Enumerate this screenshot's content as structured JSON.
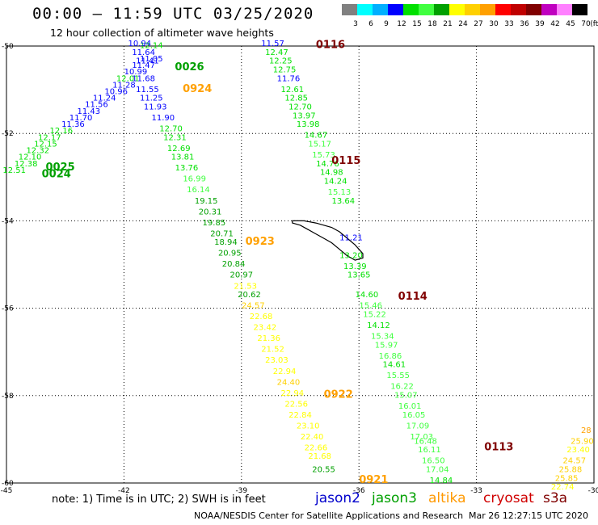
{
  "header": {
    "title": "00:00 – 11:59 UTC 03/25/2020",
    "subtitle": "12 hour collection of altimeter wave heights"
  },
  "colorbar": {
    "colors": [
      "#808080",
      "#00ffff",
      "#00b0ff",
      "#0000ff",
      "#00e000",
      "#40ff40",
      "#00a000",
      "#ffff00",
      "#ffd000",
      "#ffa000",
      "#ff0000",
      "#c00000",
      "#800000",
      "#c000c0",
      "#ff80ff",
      "#000000"
    ],
    "labels": [
      "3",
      "6",
      "9",
      "12",
      "15",
      "18",
      "21",
      "24",
      "27",
      "30",
      "33",
      "36",
      "39",
      "42",
      "45",
      "70",
      "(ft)"
    ]
  },
  "axes": {
    "lat_labels": [
      "-50",
      "-52",
      "-54",
      "-56",
      "-58",
      "-60"
    ],
    "lon_labels": [
      "-45",
      "-42",
      "-39",
      "-36",
      "-33",
      "-30"
    ]
  },
  "chart_data": {
    "type": "scatter",
    "description_units": "lon/lat degrees, SWH in feet",
    "lon_range": [
      -45,
      -30
    ],
    "lat_range": [
      -60,
      -50
    ],
    "passes": [
      {
        "label": "0026",
        "color": "#00a000",
        "lon": -40.7,
        "lat": -50.55
      },
      {
        "label": "0924",
        "color": "#ffa000",
        "lon": -40.5,
        "lat": -51.05
      },
      {
        "label": "0025",
        "color": "#00a000",
        "lon": -44.0,
        "lat": -52.85
      },
      {
        "label": "0024",
        "color": "#00a000",
        "lon": -44.1,
        "lat": -53.0
      },
      {
        "label": "0116",
        "color": "#800000",
        "lon": -37.1,
        "lat": -50.05
      },
      {
        "label": "0115",
        "color": "#800000",
        "lon": -36.7,
        "lat": -52.7
      },
      {
        "label": "0923",
        "color": "#ffa000",
        "lon": -38.9,
        "lat": -54.55
      },
      {
        "label": "0114",
        "color": "#800000",
        "lon": -35.0,
        "lat": -55.8
      },
      {
        "label": "0922",
        "color": "#ffa000",
        "lon": -36.9,
        "lat": -58.05
      },
      {
        "label": "0113",
        "color": "#800000",
        "lon": -32.8,
        "lat": -59.25
      },
      {
        "label": "0921",
        "color": "#ffa000",
        "lon": -36.0,
        "lat": -60.0
      }
    ],
    "tracks": [
      {
        "name": "pass-0024-0026",
        "points": [
          {
            "lon": -44.8,
            "lat": -52.9,
            "v": 12.51
          },
          {
            "lon": -44.5,
            "lat": -52.75,
            "v": 12.38
          },
          {
            "lon": -44.4,
            "lat": -52.6,
            "v": 12.1
          },
          {
            "lon": -44.2,
            "lat": -52.45,
            "v": 12.32
          },
          {
            "lon": -44.0,
            "lat": -52.3,
            "v": 12.15
          },
          {
            "lon": -43.9,
            "lat": -52.15,
            "v": 12.17
          },
          {
            "lon": -43.6,
            "lat": -52.0,
            "v": 12.16
          },
          {
            "lon": -43.3,
            "lat": -51.85,
            "v": 11.36
          },
          {
            "lon": -43.1,
            "lat": -51.7,
            "v": 11.7
          },
          {
            "lon": -42.9,
            "lat": -51.55,
            "v": 11.43
          },
          {
            "lon": -42.7,
            "lat": -51.4,
            "v": 11.56
          },
          {
            "lon": -42.5,
            "lat": -51.25,
            "v": 11.24
          },
          {
            "lon": -42.2,
            "lat": -51.1,
            "v": 10.96
          },
          {
            "lon": -42.0,
            "lat": -50.95,
            "v": 11.28
          },
          {
            "lon": -41.9,
            "lat": -50.8,
            "v": 12.01
          },
          {
            "lon": -41.7,
            "lat": -50.65,
            "v": 10.99
          },
          {
            "lon": -41.5,
            "lat": -50.5,
            "v": 11.47
          },
          {
            "lon": -41.4,
            "lat": -50.4,
            "v": 11.41
          },
          {
            "lon": -41.3,
            "lat": -50.35,
            "v": 11.05
          },
          {
            "lon": -41.5,
            "lat": -50.2,
            "v": 11.64
          },
          {
            "lon": -41.3,
            "lat": -50.05,
            "v": 12.14
          },
          {
            "lon": -41.6,
            "lat": -50.0,
            "v": 10.94
          }
        ]
      },
      {
        "name": "pass-0921-0924",
        "points": [
          {
            "lon": -41.5,
            "lat": -50.8,
            "v": 11.68
          },
          {
            "lon": -41.4,
            "lat": -51.05,
            "v": 11.55
          },
          {
            "lon": -41.3,
            "lat": -51.25,
            "v": 11.25
          },
          {
            "lon": -41.2,
            "lat": -51.45,
            "v": 11.93
          },
          {
            "lon": -41.0,
            "lat": -51.7,
            "v": 11.9
          },
          {
            "lon": -40.8,
            "lat": -51.95,
            "v": 12.7
          },
          {
            "lon": -40.7,
            "lat": -52.15,
            "v": 12.31
          },
          {
            "lon": -40.6,
            "lat": -52.4,
            "v": 12.69
          },
          {
            "lon": -40.5,
            "lat": -52.6,
            "v": 13.81
          },
          {
            "lon": -40.4,
            "lat": -52.85,
            "v": 13.76
          },
          {
            "lon": -40.2,
            "lat": -53.1,
            "v": 16.99
          },
          {
            "lon": -40.1,
            "lat": -53.35,
            "v": 16.14
          },
          {
            "lon": -39.9,
            "lat": -53.6,
            "v": 19.15
          },
          {
            "lon": -39.8,
            "lat": -53.85,
            "v": 20.31
          },
          {
            "lon": -39.7,
            "lat": -54.1,
            "v": 19.85
          },
          {
            "lon": -39.5,
            "lat": -54.35,
            "v": 20.71
          },
          {
            "lon": -39.4,
            "lat": -54.55,
            "v": 18.94
          },
          {
            "lon": -39.3,
            "lat": -54.8,
            "v": 20.95
          },
          {
            "lon": -39.2,
            "lat": -55.05,
            "v": 20.84
          },
          {
            "lon": -39.0,
            "lat": -55.3,
            "v": 20.97
          },
          {
            "lon": -38.9,
            "lat": -55.55,
            "v": 21.53
          },
          {
            "lon": -38.8,
            "lat": -55.75,
            "v": 20.62
          },
          {
            "lon": -38.7,
            "lat": -56.0,
            "v": 24.57
          },
          {
            "lon": -38.5,
            "lat": -56.25,
            "v": 22.68
          },
          {
            "lon": -38.4,
            "lat": -56.5,
            "v": 23.42
          },
          {
            "lon": -38.3,
            "lat": -56.75,
            "v": 21.36
          },
          {
            "lon": -38.2,
            "lat": -57.0,
            "v": 21.52
          },
          {
            "lon": -38.1,
            "lat": -57.25,
            "v": 23.03
          },
          {
            "lon": -37.9,
            "lat": -57.5,
            "v": 22.94
          },
          {
            "lon": -37.8,
            "lat": -57.75,
            "v": 24.4
          },
          {
            "lon": -37.7,
            "lat": -58.0,
            "v": 22.94
          },
          {
            "lon": -37.6,
            "lat": -58.25,
            "v": 22.56
          },
          {
            "lon": -37.5,
            "lat": -58.5,
            "v": 22.84
          },
          {
            "lon": -37.3,
            "lat": -58.75,
            "v": 23.1
          },
          {
            "lon": -37.2,
            "lat": -59.0,
            "v": 22.4
          },
          {
            "lon": -37.1,
            "lat": -59.25,
            "v": 22.66
          },
          {
            "lon": -37.0,
            "lat": -59.45,
            "v": 21.68
          },
          {
            "lon": -36.9,
            "lat": -59.75,
            "v": 20.55
          }
        ]
      },
      {
        "name": "pass-0113-0116",
        "points": [
          {
            "lon": -38.2,
            "lat": -50.0,
            "v": 11.57
          },
          {
            "lon": -38.1,
            "lat": -50.2,
            "v": 12.47
          },
          {
            "lon": -38.0,
            "lat": -50.4,
            "v": 12.25
          },
          {
            "lon": -37.9,
            "lat": -50.6,
            "v": 12.75
          },
          {
            "lon": -37.8,
            "lat": -50.8,
            "v": 11.76
          },
          {
            "lon": -37.7,
            "lat": -51.05,
            "v": 12.61
          },
          {
            "lon": -37.6,
            "lat": -51.25,
            "v": 12.85
          },
          {
            "lon": -37.5,
            "lat": -51.45,
            "v": 12.7
          },
          {
            "lon": -37.4,
            "lat": -51.65,
            "v": 13.97
          },
          {
            "lon": -37.3,
            "lat": -51.85,
            "v": 13.98
          },
          {
            "lon": -37.1,
            "lat": -52.1,
            "v": 14.67
          },
          {
            "lon": -37.0,
            "lat": -52.3,
            "v": 15.17
          },
          {
            "lon": -36.9,
            "lat": -52.55,
            "v": 15.73
          },
          {
            "lon": -36.8,
            "lat": -52.75,
            "v": 14.76
          },
          {
            "lon": -36.7,
            "lat": -52.95,
            "v": 14.98
          },
          {
            "lon": -36.6,
            "lat": -53.15,
            "v": 14.24
          },
          {
            "lon": -36.5,
            "lat": -53.4,
            "v": 15.13
          },
          {
            "lon": -36.4,
            "lat": -53.6,
            "v": 13.64
          },
          {
            "lon": -36.2,
            "lat": -54.45,
            "v": 11.21
          },
          {
            "lon": -36.2,
            "lat": -54.85,
            "v": 13.2
          },
          {
            "lon": -36.1,
            "lat": -55.1,
            "v": 13.39
          },
          {
            "lon": -36.0,
            "lat": -55.3,
            "v": 13.65
          },
          {
            "lon": -35.8,
            "lat": -55.75,
            "v": 14.6
          },
          {
            "lon": -35.7,
            "lat": -56.0,
            "v": 15.46
          },
          {
            "lon": -35.6,
            "lat": -56.2,
            "v": 15.22
          },
          {
            "lon": -35.5,
            "lat": -56.45,
            "v": 14.12
          },
          {
            "lon": -35.4,
            "lat": -56.7,
            "v": 15.34
          },
          {
            "lon": -35.3,
            "lat": -56.9,
            "v": 15.97
          },
          {
            "lon": -35.2,
            "lat": -57.15,
            "v": 16.86
          },
          {
            "lon": -35.1,
            "lat": -57.35,
            "v": 14.61
          },
          {
            "lon": -35.0,
            "lat": -57.6,
            "v": 15.55
          },
          {
            "lon": -34.9,
            "lat": -57.85,
            "v": 16.22
          },
          {
            "lon": -34.8,
            "lat": -58.05,
            "v": 15.07
          },
          {
            "lon": -34.7,
            "lat": -58.3,
            "v": 16.01
          },
          {
            "lon": -34.6,
            "lat": -58.5,
            "v": 16.05
          },
          {
            "lon": -34.5,
            "lat": -58.75,
            "v": 17.09
          },
          {
            "lon": -34.4,
            "lat": -59.0,
            "v": 17.03
          },
          {
            "lon": -34.3,
            "lat": -59.1,
            "v": 16.48
          },
          {
            "lon": -34.2,
            "lat": -59.3,
            "v": 16.11
          },
          {
            "lon": -34.1,
            "lat": -59.55,
            "v": 16.5
          },
          {
            "lon": -34.0,
            "lat": -59.75,
            "v": 17.04
          },
          {
            "lon": -33.9,
            "lat": -60.0,
            "v": 14.84
          }
        ]
      },
      {
        "name": "pass-east",
        "points": [
          {
            "lon": -30.2,
            "lat": -58.85,
            "v": 28
          },
          {
            "lon": -30.3,
            "lat": -59.1,
            "v": 25.9
          },
          {
            "lon": -30.4,
            "lat": -59.3,
            "v": 23.4
          },
          {
            "lon": -30.5,
            "lat": -59.55,
            "v": 24.57
          },
          {
            "lon": -30.6,
            "lat": -59.75,
            "v": 25.88
          },
          {
            "lon": -30.7,
            "lat": -59.95,
            "v": 25.85
          },
          {
            "lon": -30.8,
            "lat": -60.15,
            "v": 22.74
          }
        ]
      }
    ]
  },
  "footer": {
    "note": "note:  1) Time is in UTC;  2) SWH is in feet",
    "legend": [
      {
        "name": "jason2",
        "color": "#0000cc"
      },
      {
        "name": "jason3",
        "color": "#00a000"
      },
      {
        "name": "altika",
        "color": "#ff9900"
      },
      {
        "name": "cryosat",
        "color": "#d00000"
      },
      {
        "name": "s3a",
        "color": "#800000"
      }
    ],
    "credit": "NOAA/NESDIS Center for Satellite Applications and Research",
    "timestamp": "Mar 26 12:27:15 UTC 2020"
  }
}
